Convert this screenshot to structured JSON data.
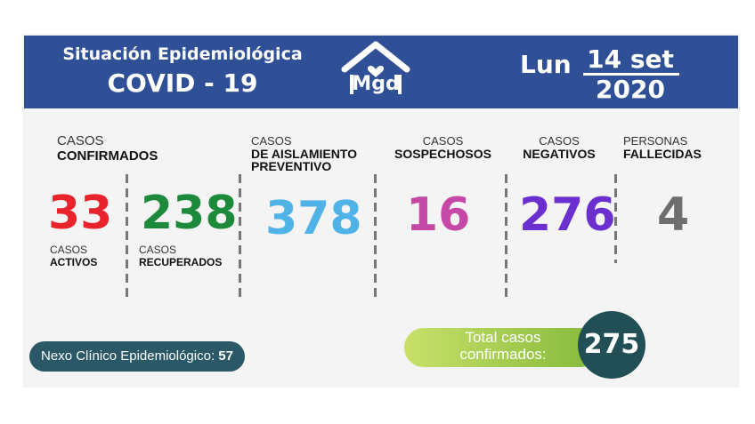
{
  "header": {
    "title_line1": "Situación Epidemiológica",
    "title_line2": "COVID - 19",
    "logo_text": "Mgd",
    "day": "Lun",
    "date": "14 set",
    "year": "2020"
  },
  "stats": {
    "confirmados": {
      "label_top": "CASOS",
      "label_bold": "CONFIRMADOS"
    },
    "activos": {
      "value": "33",
      "label_top": "CASOS",
      "label_bold": "ACTIVOS",
      "color": "#e8232b"
    },
    "recuperados": {
      "value": "238",
      "label_top": "CASOS",
      "label_bold": "RECUPERADOS",
      "color": "#1c8a3a"
    },
    "aislamiento": {
      "value": "378",
      "label_top": "CASOS",
      "label_bold": "DE AISLAMIENTO PREVENTIVO",
      "color": "#4fb3e8"
    },
    "sospechosos": {
      "value": "16",
      "label_top": "CASOS",
      "label_bold": "SOSPECHOSOS",
      "color": "#c548a6"
    },
    "negativos": {
      "value": "276",
      "label_top": "CASOS",
      "label_bold": "NEGATIVOS",
      "color": "#6b2fd0"
    },
    "fallecidas": {
      "value": "4",
      "label_top": "PERSONAS",
      "label_bold": "FALLECIDAS",
      "color": "#6e6e6e"
    }
  },
  "nexo": {
    "label": "Nexo Clínico Epidemiológico:",
    "value": "57"
  },
  "total": {
    "label_line1": "Total casos",
    "label_line2": "confirmados:",
    "value": "275"
  },
  "colors": {
    "header_bg": "#2f4f96",
    "nexo_bg": "#2b5866",
    "total_circle": "#214f55"
  }
}
